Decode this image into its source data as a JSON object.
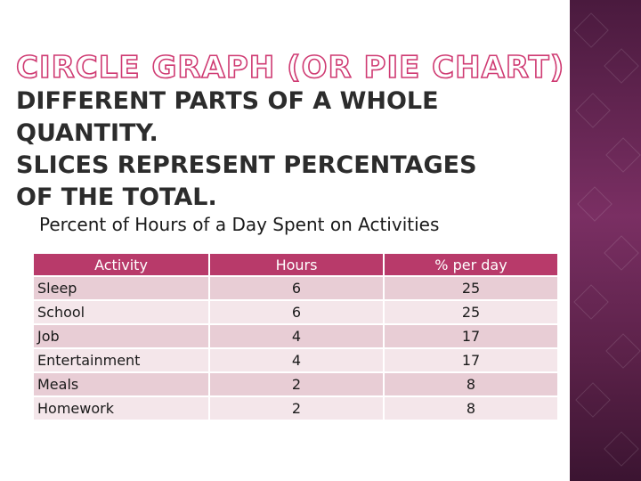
{
  "slide": {
    "title": "CIRCLE GRAPH (OR PIE CHART)",
    "subtitle": "DIFFERENT PARTS OF A WHOLE QUANTITY.\nSLICES REPRESENT PERCENTAGES\nOF THE TOTAL.",
    "accent_color": "#cf3a72",
    "band_color": "#6b2757"
  },
  "table": {
    "caption": "Percent of Hours of a Day Spent on Activities",
    "header_color": "#b83a6a",
    "headers": [
      "Activity",
      "Hours",
      "% per day"
    ],
    "rows": [
      [
        "Sleep",
        "6",
        "25"
      ],
      [
        "School",
        "6",
        "25"
      ],
      [
        "Job",
        "4",
        "17"
      ],
      [
        "Entertainment",
        "4",
        "17"
      ],
      [
        "Meals",
        "2",
        "8"
      ],
      [
        "Homework",
        "2",
        "8"
      ]
    ]
  }
}
